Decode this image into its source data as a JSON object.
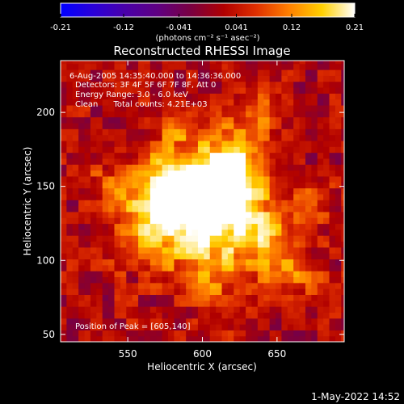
{
  "colorbar": {
    "ticks": [
      "-0.21",
      "-0.12",
      "-0.041",
      "0.041",
      "0.12",
      "0.21"
    ],
    "tick_values": [
      -0.21,
      -0.12,
      -0.041,
      0.041,
      0.12,
      0.21
    ],
    "range": [
      -0.21,
      0.21
    ],
    "units": "(photons cm⁻² s⁻¹ asec⁻²)",
    "colormap": [
      "#0000ff",
      "#2a00d8",
      "#4a00a8",
      "#600080",
      "#7a0040",
      "#b00000",
      "#e03000",
      "#ff8000",
      "#ffd000",
      "#ffffff"
    ]
  },
  "title": "Reconstructed RHESSI Image",
  "annotations": {
    "time": "6-Aug-2005 14:35:40.000 to 14:36:36.000",
    "detectors": "Detectors: 3F 4F 5F 6F 7F 8F, Att 0",
    "energy": "Energy Range: 3.0 - 6.0 keV",
    "clean": "Clean      Total counts: 4.21E+03",
    "peak": "Position of Peak = [605,140]"
  },
  "footer": {
    "date": "1-May-2022 14:52"
  },
  "chart_data": {
    "type": "heatmap",
    "title": "Reconstructed RHESSI Image",
    "xlabel": "Heliocentric X (arcsec)",
    "ylabel": "Heliocentric Y (arcsec)",
    "xlim": [
      505,
      695
    ],
    "ylim": [
      45,
      235
    ],
    "xticks": [
      550,
      600,
      650
    ],
    "yticks": [
      50,
      100,
      150,
      200
    ],
    "peak": [
      605,
      140
    ],
    "grid": false,
    "emission_blobs": [
      {
        "x": 605,
        "y": 140,
        "amplitude": 0.21,
        "sigma": 22
      },
      {
        "x": 575,
        "y": 145,
        "amplitude": 0.15,
        "sigma": 18
      },
      {
        "x": 620,
        "y": 160,
        "amplitude": 0.13,
        "sigma": 18
      },
      {
        "x": 640,
        "y": 115,
        "amplitude": 0.11,
        "sigma": 16
      },
      {
        "x": 560,
        "y": 115,
        "amplitude": 0.09,
        "sigma": 15
      },
      {
        "x": 600,
        "y": 95,
        "amplitude": 0.08,
        "sigma": 16
      },
      {
        "x": 660,
        "y": 90,
        "amplitude": 0.07,
        "sigma": 14
      },
      {
        "x": 540,
        "y": 150,
        "amplitude": 0.06,
        "sigma": 12
      },
      {
        "x": 635,
        "y": 195,
        "amplitude": 0.06,
        "sigma": 14
      },
      {
        "x": 580,
        "y": 190,
        "amplitude": 0.05,
        "sigma": 12
      },
      {
        "x": 620,
        "y": 65,
        "amplitude": 0.05,
        "sigma": 14
      },
      {
        "x": 675,
        "y": 140,
        "amplitude": 0.05,
        "sigma": 12
      }
    ]
  }
}
